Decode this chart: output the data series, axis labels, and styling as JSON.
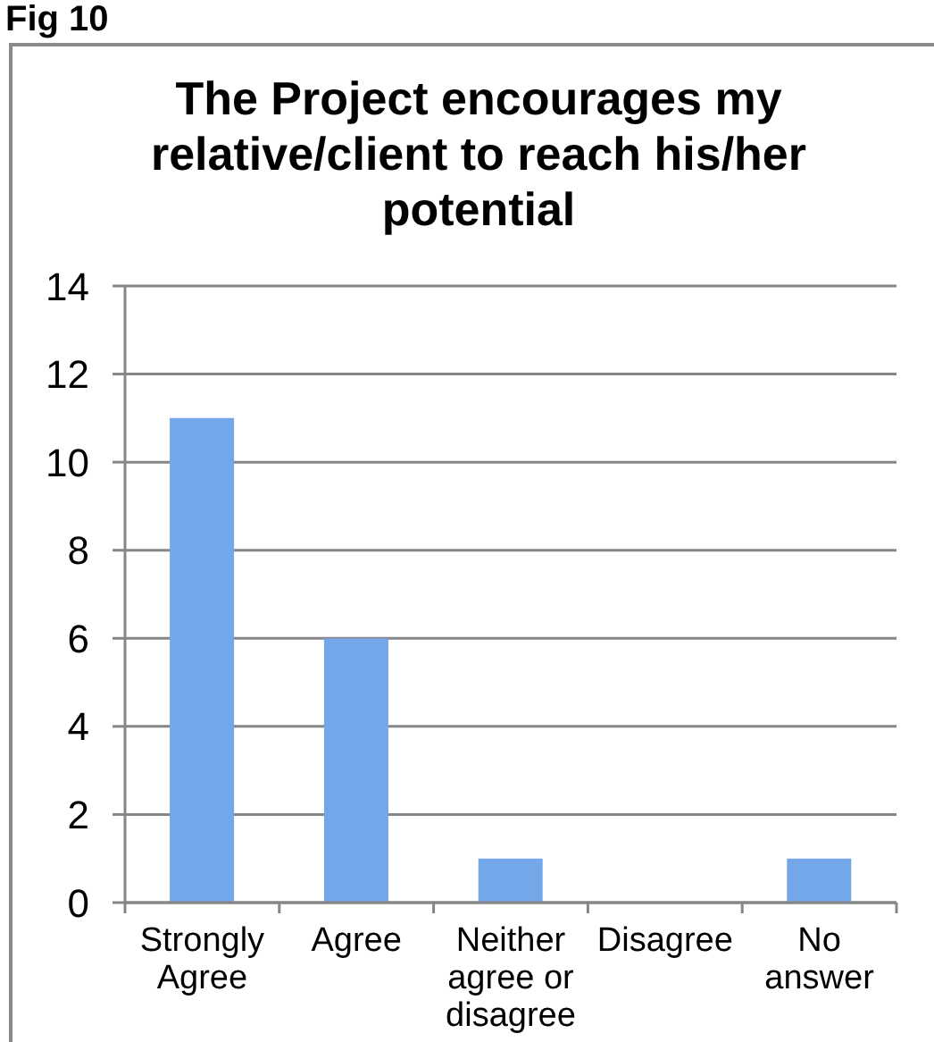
{
  "chart_data": {
    "type": "bar",
    "title": "The Project encourages my relative/client to reach his/her potential",
    "annotations": [
      "Fig 10"
    ],
    "categories": [
      "Strongly Agree",
      "Agree",
      "Neither agree or disagree",
      "Disagree",
      "No answer"
    ],
    "values": [
      11,
      6,
      1,
      0,
      1
    ],
    "color": "#74a7ea",
    "ylim": [
      0,
      14
    ],
    "yticks": [
      0,
      2,
      4,
      6,
      8,
      10,
      12,
      14
    ],
    "grid": "y"
  }
}
